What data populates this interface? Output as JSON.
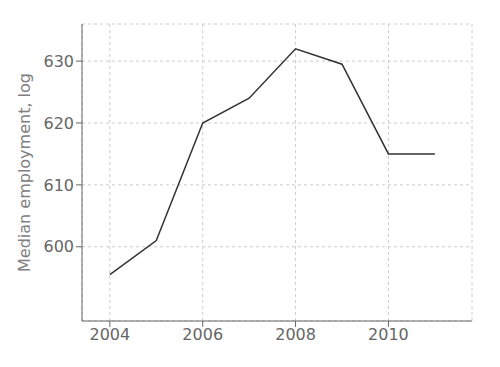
{
  "chart_data": {
    "type": "line",
    "x": [
      2004,
      2005,
      2006,
      2007,
      2008,
      2009,
      2010,
      2011
    ],
    "values": [
      595.5,
      601.0,
      620.0,
      624.0,
      632.0,
      629.5,
      615.0,
      615.0
    ],
    "color": "#333333",
    "ylabel": "Median employment, log",
    "xlim": [
      2003.4,
      2011.8
    ],
    "ylim": [
      588,
      636
    ],
    "xticks": [
      2004,
      2006,
      2008,
      2010
    ],
    "yticks": [
      600,
      610,
      620,
      630
    ],
    "grid": true
  }
}
